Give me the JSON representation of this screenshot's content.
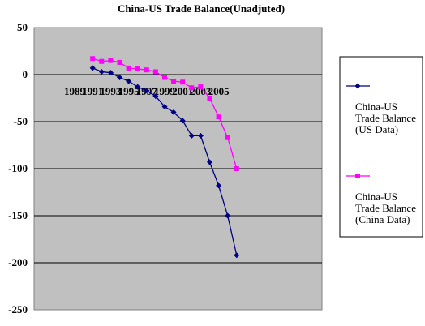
{
  "chart_data": {
    "type": "line",
    "title": "China-US Trade Balance(Unadjuted)",
    "x_ticks": [
      1989,
      1991,
      1993,
      1995,
      1997,
      1999,
      2001,
      2003,
      2005
    ],
    "y_ticks": [
      50,
      0,
      -50,
      -100,
      -150,
      -200,
      -250
    ],
    "xlim": [
      1989,
      2007
    ],
    "ylim": [
      -250,
      50
    ],
    "x": [
      1991,
      1992,
      1993,
      1994,
      1995,
      1996,
      1997,
      1998,
      1999,
      2000,
      2001,
      2002,
      2003,
      2004,
      2005,
      2006,
      2007
    ],
    "series": [
      {
        "name": "China-US Trade Balance (US Data)",
        "legend_lines": [
          "China-US",
          "Trade Balance",
          "(US Data)"
        ],
        "color": "#000080",
        "marker": "diamond",
        "values": [
          7,
          3,
          2,
          -3,
          -7,
          -13,
          -17,
          -23,
          -34,
          -40,
          -49,
          -65,
          -65,
          -93,
          -118,
          -150,
          -192
        ]
      },
      {
        "name": "China-US Trade Balance (China Data)",
        "legend_lines": [
          "China-US",
          "Trade Balance",
          "(China Data)"
        ],
        "color": "#ff00ff",
        "marker": "square",
        "values": [
          17,
          14,
          15,
          13,
          7,
          6,
          5,
          3,
          -3,
          -7,
          -8,
          -14,
          -13,
          -25,
          -45,
          -67,
          -100
        ]
      }
    ],
    "grid": true,
    "legend_position": "right"
  }
}
